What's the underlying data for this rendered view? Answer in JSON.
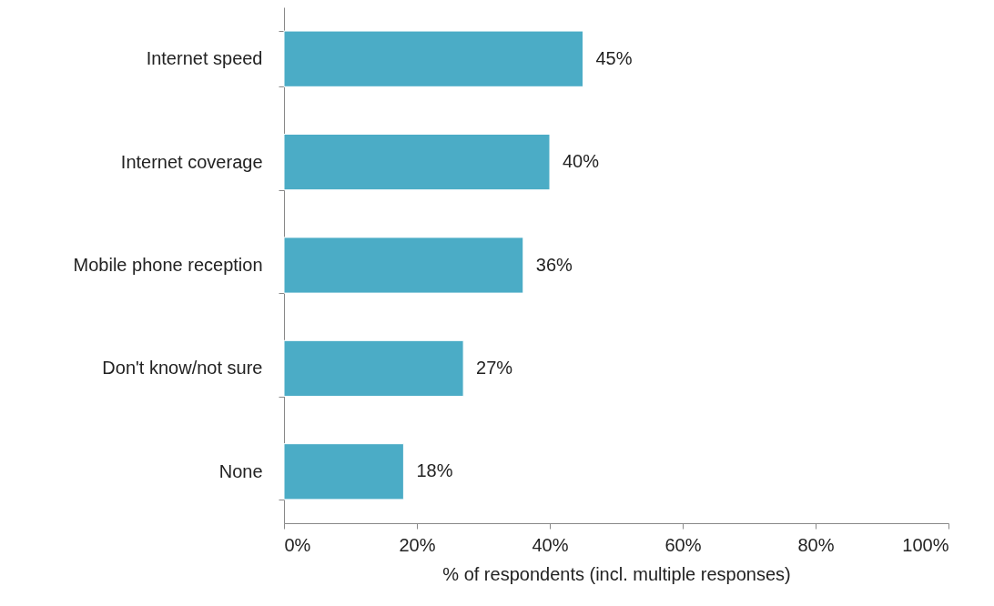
{
  "chart_data": {
    "type": "bar",
    "orientation": "horizontal",
    "xlabel": "% of respondents (incl. multiple responses)",
    "categories": [
      "Internet speed",
      "Internet coverage",
      "Mobile phone reception",
      "Don't know/not sure",
      "None"
    ],
    "values": [
      45,
      40,
      36,
      27,
      18
    ],
    "value_labels": [
      "45%",
      "40%",
      "36%",
      "27%",
      "18%"
    ],
    "color": "#4bacc6",
    "xlim": [
      0,
      100
    ],
    "xticks": [
      {
        "value": 0,
        "label": "0%"
      },
      {
        "value": 20,
        "label": "20%"
      },
      {
        "value": 40,
        "label": "40%"
      },
      {
        "value": 60,
        "label": "60%"
      },
      {
        "value": 80,
        "label": "80%"
      },
      {
        "value": 100,
        "label": "100%"
      }
    ],
    "grid": false
  }
}
